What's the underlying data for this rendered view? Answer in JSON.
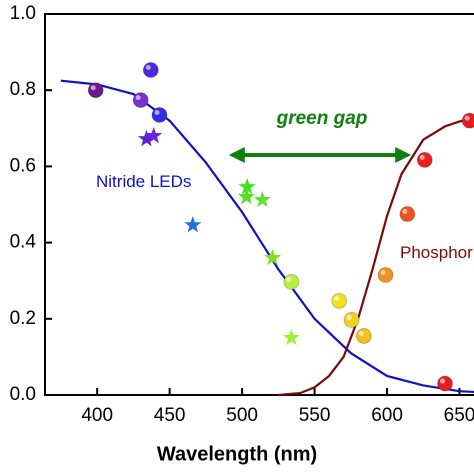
{
  "chart_data": {
    "type": "line",
    "xlabel": "Wavelength (nm)",
    "xlim": [
      364,
      660
    ],
    "ylim": [
      0,
      1
    ],
    "xticks": [
      400,
      450,
      500,
      550,
      600,
      650
    ],
    "yticks": [
      {
        "value": 0,
        "label": "0.0"
      },
      0.2,
      0.4,
      0.6,
      0.8,
      {
        "value": 1,
        "label": "1.0"
      }
    ],
    "series": [
      {
        "name": "Nitride LEDs",
        "color": "#1010c8",
        "x": [
          375,
          400,
          425,
          450,
          475,
          500,
          525,
          550,
          575,
          600,
          625,
          650,
          660
        ],
        "values": [
          0.825,
          0.815,
          0.79,
          0.72,
          0.61,
          0.48,
          0.33,
          0.2,
          0.11,
          0.05,
          0.025,
          0.01,
          0.008
        ]
      },
      {
        "name": "Phosphor LEDs",
        "color": "#7a0a0a",
        "x": [
          525,
          540,
          550,
          560,
          570,
          580,
          590,
          600,
          610,
          625,
          640,
          650,
          660
        ],
        "values": [
          0,
          0.005,
          0.02,
          0.05,
          0.1,
          0.2,
          0.33,
          0.47,
          0.58,
          0.67,
          0.705,
          0.718,
          0.725
        ]
      }
    ],
    "points": {
      "x": [
        399,
        430,
        437,
        443,
        534,
        567,
        575.5,
        584,
        599,
        614,
        626,
        657,
        640,
        434,
        439,
        466,
        503.5,
        503,
        514,
        521,
        534
      ],
      "values": [
        0.8,
        0.774,
        0.853,
        0.735,
        0.297,
        0.247,
        0.197,
        0.155,
        0.315,
        0.475,
        0.617,
        0.72,
        0.03,
        0.672,
        0.68,
        0.446,
        0.546,
        0.52,
        0.512,
        0.36,
        0.15
      ],
      "markers": [
        "circle",
        "circle",
        "circle",
        "circle",
        "circle",
        "circle",
        "circle",
        "circle",
        "circle",
        "circle",
        "circle",
        "circle",
        "circle",
        "star",
        "star",
        "star",
        "star",
        "star",
        "star",
        "star",
        "star"
      ],
      "colors": [
        "#6a1a8a",
        "#7a30d0",
        "#4a2ae0",
        "#3030e0",
        "#b8f040",
        "#f0e020",
        "#f0d020",
        "#f0c020",
        "#f09020",
        "#f05020",
        "#e82020",
        "#e02020",
        "#e02020",
        "#6020d0",
        "#7020e0",
        "#2070e0",
        "#40e020",
        "#50e020",
        "#60e030",
        "#80e020",
        "#a0f030"
      ]
    },
    "annotation": "green gap",
    "annotation_color": "#108010"
  }
}
